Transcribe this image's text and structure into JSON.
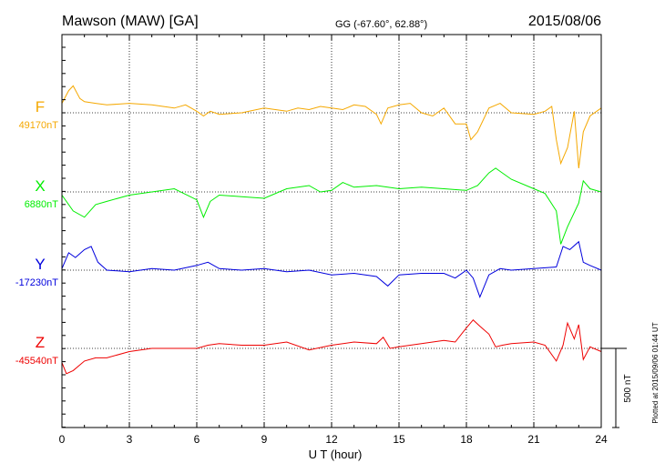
{
  "chart_data": {
    "type": "line",
    "title": "Mawson (MAW)  [GA]",
    "subtitle": "GG (-67.60°,  62.88°)",
    "date": "2015/08/06",
    "xlabel": "U T (hour)",
    "xlim": [
      0,
      24
    ],
    "x_ticks": [
      0,
      3,
      6,
      9,
      12,
      15,
      18,
      21,
      24
    ],
    "grid": true,
    "scale_bar": {
      "value": 500,
      "label": "500 nT"
    },
    "plotted_note": "Plotted at 2015/09/06 01:44 UT",
    "series": [
      {
        "name": "F",
        "baseline_label": "49170nT",
        "baseline": 49170,
        "color": "#f5a800",
        "x": [
          0,
          0.3,
          0.5,
          0.8,
          1.0,
          1.5,
          2,
          3,
          4,
          4.5,
          5,
          5.5,
          6,
          6.3,
          6.6,
          7,
          8,
          9,
          9.5,
          10,
          10.5,
          11,
          11.5,
          12,
          12.5,
          13,
          13.5,
          14,
          14.2,
          14.5,
          15,
          15.5,
          16,
          16.5,
          17,
          17.5,
          18,
          18.2,
          18.5,
          19,
          19.5,
          20,
          21,
          21.5,
          21.8,
          22,
          22.2,
          22.5,
          22.8,
          23,
          23.2,
          23.5,
          24
        ],
        "values": [
          49230,
          49310,
          49340,
          49260,
          49240,
          49230,
          49220,
          49230,
          49220,
          49210,
          49200,
          49220,
          49180,
          49150,
          49180,
          49160,
          49170,
          49200,
          49190,
          49180,
          49200,
          49190,
          49210,
          49200,
          49190,
          49220,
          49210,
          49160,
          49100,
          49200,
          49220,
          49230,
          49170,
          49150,
          49200,
          49100,
          49100,
          49000,
          49050,
          49200,
          49230,
          49170,
          49160,
          49180,
          49210,
          49000,
          48850,
          48950,
          49180,
          48820,
          49050,
          49150,
          49200
        ]
      },
      {
        "name": "X",
        "baseline_label": "6880nT",
        "baseline": 6880,
        "color": "#00ee00",
        "x": [
          0,
          0.5,
          1.0,
          1.5,
          2,
          3,
          4,
          5,
          6,
          6.3,
          6.6,
          7,
          8,
          9,
          10,
          11,
          11.5,
          12,
          12.5,
          13,
          14,
          15,
          16,
          17,
          18,
          18.5,
          19,
          19.3,
          19.5,
          20,
          21,
          21.5,
          22,
          22.2,
          22.5,
          23,
          23.2,
          23.5,
          24
        ],
        "values": [
          6860,
          6760,
          6720,
          6800,
          6820,
          6860,
          6880,
          6900,
          6830,
          6720,
          6820,
          6860,
          6850,
          6840,
          6900,
          6920,
          6880,
          6890,
          6940,
          6910,
          6920,
          6900,
          6910,
          6900,
          6890,
          6920,
          7000,
          7030,
          7010,
          6960,
          6900,
          6870,
          6760,
          6550,
          6660,
          6810,
          6950,
          6900,
          6880
        ]
      },
      {
        "name": "Y",
        "baseline_label": "-17230nT",
        "baseline": -17230,
        "color": "#0000dd",
        "x": [
          0,
          0.3,
          0.6,
          1.0,
          1.3,
          1.6,
          2,
          3,
          4,
          5,
          6,
          6.5,
          7,
          8,
          9,
          10,
          11,
          12,
          13,
          14,
          14.5,
          15,
          16,
          17,
          17.5,
          18,
          18.3,
          18.6,
          19,
          19.5,
          20,
          21,
          22,
          22.3,
          22.6,
          23,
          23.2,
          23.5,
          24
        ],
        "values": [
          -17220,
          -17120,
          -17150,
          -17100,
          -17080,
          -17180,
          -17230,
          -17240,
          -17220,
          -17230,
          -17200,
          -17180,
          -17220,
          -17230,
          -17220,
          -17240,
          -17230,
          -17260,
          -17250,
          -17270,
          -17330,
          -17260,
          -17250,
          -17250,
          -17280,
          -17230,
          -17280,
          -17400,
          -17260,
          -17220,
          -17230,
          -17220,
          -17210,
          -17080,
          -17100,
          -17050,
          -17180,
          -17200,
          -17230
        ]
      },
      {
        "name": "Z",
        "baseline_label": "-45540nT",
        "baseline": -45540,
        "color": "#ee0000",
        "x": [
          0,
          0.2,
          0.5,
          1.0,
          1.5,
          2,
          3,
          4,
          5,
          6,
          6.5,
          7,
          8,
          9,
          10,
          11,
          12,
          13,
          14,
          14.3,
          14.6,
          15,
          16,
          17,
          17.5,
          18,
          18.3,
          18.6,
          19,
          19.3,
          19.6,
          20,
          21,
          21.5,
          22,
          22.3,
          22.5,
          22.8,
          23,
          23.2,
          23.5,
          24
        ],
        "values": [
          -45630,
          -45700,
          -45680,
          -45620,
          -45600,
          -45600,
          -45560,
          -45540,
          -45540,
          -45540,
          -45520,
          -45510,
          -45520,
          -45520,
          -45500,
          -45550,
          -45520,
          -45500,
          -45510,
          -45470,
          -45540,
          -45530,
          -45510,
          -45490,
          -45500,
          -45410,
          -45360,
          -45400,
          -45450,
          -45530,
          -45520,
          -45510,
          -45500,
          -45520,
          -45620,
          -45520,
          -45380,
          -45480,
          -45390,
          -45610,
          -45530,
          -45560
        ]
      }
    ]
  }
}
